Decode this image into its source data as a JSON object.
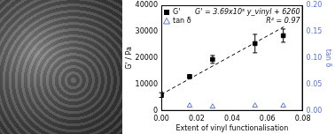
{
  "chart_data": {
    "type": "scatter",
    "x_label": "Extent of vinyl functionalisation",
    "y_label": "G' / Pa",
    "y2_label": "tan δ",
    "xlim": [
      0,
      0.08
    ],
    "xticks": [
      {
        "value": 0,
        "label": "0.00"
      },
      {
        "value": 0.02,
        "label": "0.02"
      },
      {
        "value": 0.04,
        "label": "0.04"
      },
      {
        "value": 0.06,
        "label": "0.06"
      },
      {
        "value": 0.08,
        "label": "0.08"
      }
    ],
    "ylim": [
      0,
      40000
    ],
    "yticks": [
      0,
      10000,
      20000,
      30000,
      40000
    ],
    "y2lim": [
      0,
      0.2
    ],
    "y2ticks": [
      {
        "value": 0,
        "label": "0.00"
      },
      {
        "value": 0.05,
        "label": "0.05"
      },
      {
        "value": 0.1,
        "label": "0.10"
      },
      {
        "value": 0.15,
        "label": "0.15"
      },
      {
        "value": 0.2,
        "label": "0.20"
      }
    ],
    "grid": false,
    "legend": "upper left",
    "annotations": [
      "G' = 3.69x10⁵ y_vinyl + 6260",
      "R² = 0.97"
    ],
    "series": [
      {
        "name": "G'",
        "color": "#000000",
        "marker": "square",
        "x": [
          0,
          0.016,
          0.029,
          0.053,
          0.069
        ],
        "values": [
          6000,
          13000,
          19500,
          25500,
          28500
        ],
        "errors": [
          900,
          700,
          1500,
          3500,
          2500
        ]
      },
      {
        "name": "tan δ",
        "color": "#5b73d6",
        "marker": "triangle",
        "axis": "y2",
        "x": [
          0,
          0.016,
          0.029,
          0.053,
          0.069
        ],
        "values": [
          0.035,
          0.01,
          0.008,
          0.01,
          0.01
        ]
      },
      {
        "type": "line",
        "color": "#000000",
        "line_style": "dashed",
        "x": [
          0,
          0.07
        ],
        "values": [
          6260,
          32090
        ]
      }
    ]
  }
}
